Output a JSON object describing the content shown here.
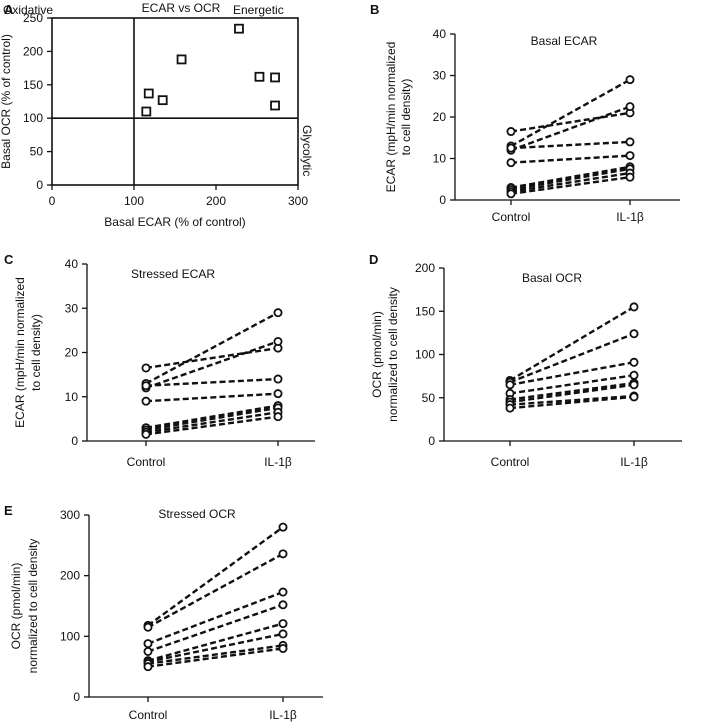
{
  "chart_data": [
    {
      "panel": "A",
      "type": "scatter",
      "title": "ECAR vs OCR",
      "xlabel": "Basal ECAR (% of control)",
      "ylabel": "Basal OCR (% of control)",
      "xlim": [
        0,
        300
      ],
      "ylim": [
        0,
        250
      ],
      "xticks": [
        0,
        100,
        200,
        300
      ],
      "yticks": [
        0,
        50,
        100,
        150,
        200,
        250
      ],
      "reference_lines": {
        "x": 100,
        "y": 100
      },
      "quadrant_labels": {
        "top_left": "Oxidative",
        "top_right": "Energetic",
        "bottom_right": "Glycolytic"
      },
      "points": [
        {
          "x": 115,
          "y": 110
        },
        {
          "x": 118,
          "y": 137
        },
        {
          "x": 135,
          "y": 127
        },
        {
          "x": 158,
          "y": 188
        },
        {
          "x": 228,
          "y": 234
        },
        {
          "x": 253,
          "y": 162
        },
        {
          "x": 272,
          "y": 161
        },
        {
          "x": 272,
          "y": 119
        }
      ]
    },
    {
      "panel": "B",
      "type": "line",
      "title": "Basal ECAR",
      "categories": [
        "Control",
        "IL-1β"
      ],
      "ylabel_lines": [
        "ECAR (mpH/min normalized",
        "to cell density)"
      ],
      "ylim": [
        0,
        40
      ],
      "yticks": [
        0,
        10,
        20,
        30,
        40
      ],
      "pairs": [
        [
          16.5,
          21.0
        ],
        [
          13.0,
          29.0
        ],
        [
          12.0,
          22.5
        ],
        [
          12.5,
          14.0
        ],
        [
          9.0,
          10.7
        ],
        [
          3.0,
          8.0
        ],
        [
          2.5,
          7.5
        ],
        [
          2.0,
          6.5
        ],
        [
          1.5,
          5.5
        ]
      ]
    },
    {
      "panel": "C",
      "type": "line",
      "title": "Stressed ECAR",
      "categories": [
        "Control",
        "IL-1β"
      ],
      "ylabel_lines": [
        "ECAR (mpH/min normalized",
        "to cell density)"
      ],
      "ylim": [
        0,
        40
      ],
      "yticks": [
        0,
        10,
        20,
        30,
        40
      ],
      "pairs": [
        [
          16.5,
          21.0
        ],
        [
          13.0,
          29.0
        ],
        [
          12.0,
          22.5
        ],
        [
          12.5,
          14.0
        ],
        [
          9.0,
          10.7
        ],
        [
          3.0,
          8.0
        ],
        [
          2.5,
          7.5
        ],
        [
          2.0,
          6.5
        ],
        [
          1.5,
          5.5
        ]
      ]
    },
    {
      "panel": "D",
      "type": "line",
      "title": "Basal OCR",
      "categories": [
        "Control",
        "IL-1β"
      ],
      "ylabel_lines": [
        "OCR (pmol/min)",
        "normalized to cell density"
      ],
      "ylim": [
        0,
        200
      ],
      "yticks": [
        0,
        50,
        100,
        150,
        200
      ],
      "pairs": [
        [
          70,
          155
        ],
        [
          68,
          124
        ],
        [
          65,
          91
        ],
        [
          55,
          76
        ],
        [
          48,
          67
        ],
        [
          45,
          65
        ],
        [
          42,
          52
        ],
        [
          38,
          51
        ]
      ]
    },
    {
      "panel": "E",
      "type": "line",
      "title": "Stressed OCR",
      "categories": [
        "Control",
        "IL-1β"
      ],
      "ylabel_lines": [
        "OCR (pmol/min)",
        "normalized to cell density"
      ],
      "ylim": [
        0,
        300
      ],
      "yticks": [
        0,
        100,
        200,
        300
      ],
      "pairs": [
        [
          118,
          280
        ],
        [
          115,
          236
        ],
        [
          88,
          173
        ],
        [
          75,
          152
        ],
        [
          60,
          121
        ],
        [
          58,
          104
        ],
        [
          55,
          85
        ],
        [
          50,
          80
        ]
      ]
    }
  ]
}
